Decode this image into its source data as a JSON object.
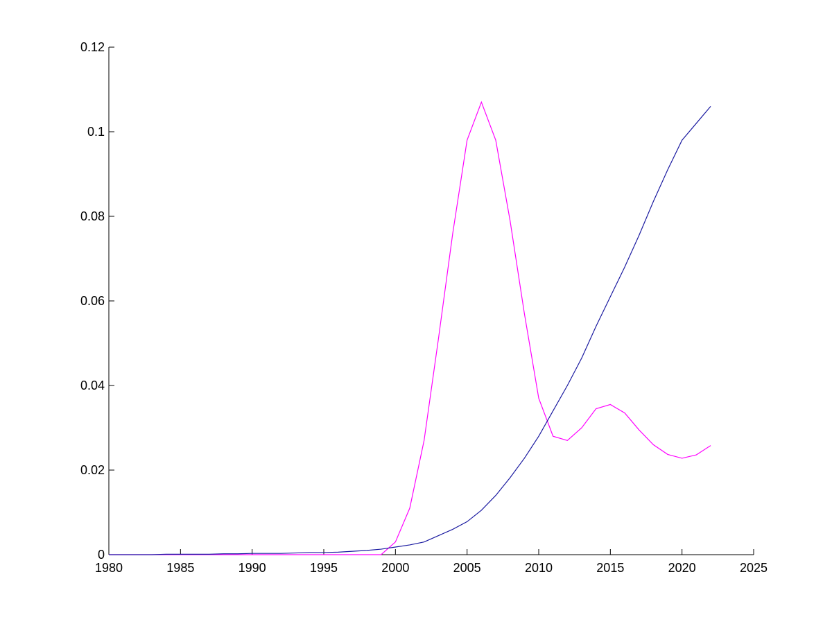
{
  "chart_data": {
    "type": "line",
    "x": [
      1980,
      1981,
      1982,
      1983,
      1984,
      1985,
      1986,
      1987,
      1988,
      1989,
      1990,
      1991,
      1992,
      1993,
      1994,
      1995,
      1996,
      1997,
      1998,
      1999,
      2000,
      2001,
      2002,
      2003,
      2004,
      2005,
      2006,
      2007,
      2008,
      2009,
      2010,
      2011,
      2012,
      2013,
      2014,
      2015,
      2016,
      2017,
      2018,
      2019,
      2020,
      2021,
      2022
    ],
    "series": [
      {
        "color": "#ff00ff",
        "values": [
          0,
          0,
          0,
          0,
          0,
          0,
          0,
          0,
          0,
          0,
          0,
          0,
          0,
          0,
          0,
          0,
          0,
          0,
          0,
          0,
          0.003,
          0.011,
          0.027,
          0.051,
          0.076,
          0.098,
          0.107,
          0.098,
          0.079,
          0.057,
          0.037,
          0.028,
          0.027,
          0.03,
          0.0345,
          0.0355,
          0.0335,
          0.0295,
          0.026,
          0.0237,
          0.0228,
          0.0236,
          0.0258
        ]
      },
      {
        "color": "#1a1aa0",
        "values": [
          0,
          0,
          0,
          0,
          0.0001,
          0.0001,
          0.0001,
          0.0001,
          0.0002,
          0.0002,
          0.0003,
          0.0003,
          0.0003,
          0.0004,
          0.0005,
          0.0005,
          0.0006,
          0.0008,
          0.001,
          0.0013,
          0.0018,
          0.0023,
          0.003,
          0.0045,
          0.006,
          0.0078,
          0.0105,
          0.014,
          0.0182,
          0.0228,
          0.028,
          0.034,
          0.04,
          0.0465,
          0.054,
          0.061,
          0.068,
          0.0755,
          0.0835,
          0.091,
          0.098,
          0.102,
          0.106
        ]
      }
    ],
    "xlim": [
      1980,
      2025
    ],
    "xticks": [
      1980,
      1985,
      1990,
      1995,
      2000,
      2005,
      2010,
      2015,
      2020,
      2025
    ],
    "ylim": [
      0,
      0.12
    ],
    "yticks": [
      0,
      0.02,
      0.04,
      0.06,
      0.08,
      0.1,
      0.12
    ],
    "grid": false
  }
}
